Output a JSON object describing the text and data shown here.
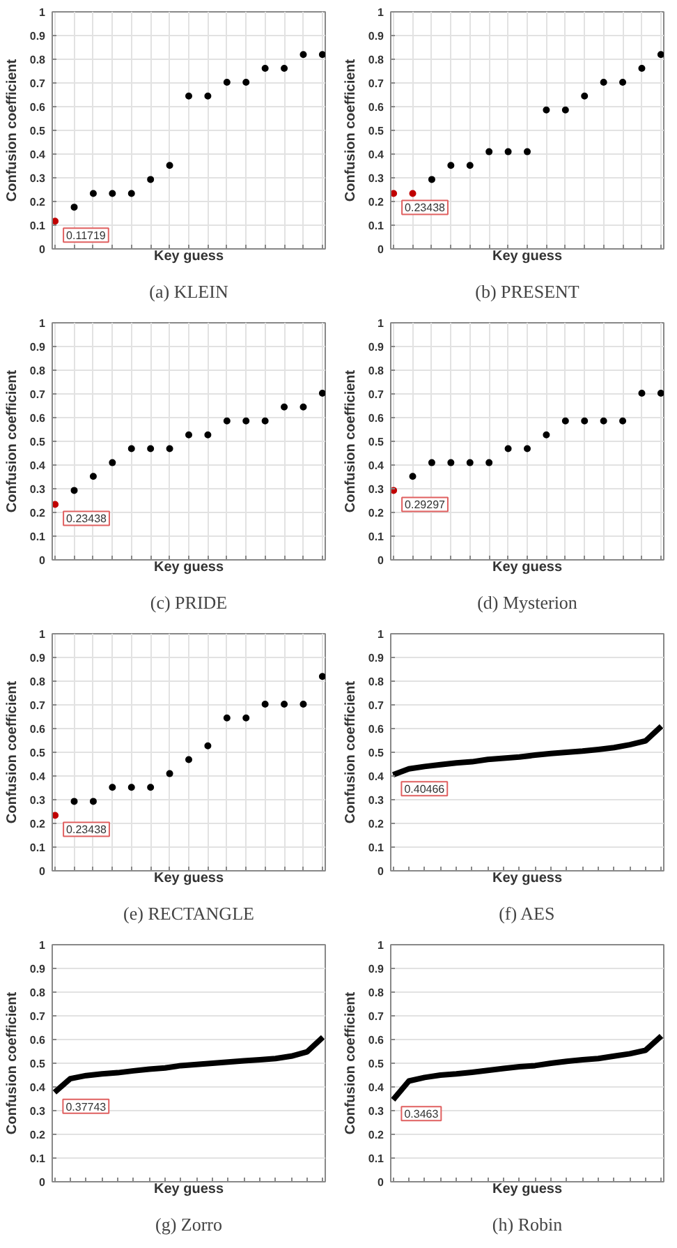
{
  "chart_data": [
    {
      "type": "scatter",
      "title": "(a) KLEIN",
      "xlabel": "Key guess",
      "ylabel": "Confusion coefficient",
      "marker": "circle",
      "grid": true,
      "ylim": [
        0,
        1
      ],
      "yticks": [
        0,
        0.1,
        0.2,
        0.3,
        0.4,
        0.5,
        0.6,
        0.7,
        0.8,
        0.9,
        1
      ],
      "categories": [
        null,
        null,
        null,
        null,
        null,
        null,
        null,
        null,
        null,
        null,
        null,
        null,
        null,
        null,
        null
      ],
      "series": [
        {
          "colors": [
            "#c00000",
            "#000000",
            "#000000",
            "#000000",
            "#000000",
            "#000000",
            "#000000",
            "#000000",
            "#000000",
            "#000000",
            "#000000",
            "#000000",
            "#000000",
            "#000000",
            "#000000"
          ],
          "values": [
            0.117,
            0.176,
            0.234,
            0.234,
            0.234,
            0.293,
            0.352,
            0.645,
            0.645,
            0.703,
            0.703,
            0.762,
            0.762,
            0.82,
            0.82
          ]
        }
      ],
      "annotations": [
        "0.11719"
      ]
    },
    {
      "type": "scatter",
      "title": "(b) PRESENT",
      "xlabel": "Key guess",
      "ylabel": "Confusion coefficient",
      "marker": "circle",
      "grid": true,
      "ylim": [
        0,
        1
      ],
      "yticks": [
        0,
        0.1,
        0.2,
        0.3,
        0.4,
        0.5,
        0.6,
        0.7,
        0.8,
        0.9,
        1
      ],
      "categories": [
        null,
        null,
        null,
        null,
        null,
        null,
        null,
        null,
        null,
        null,
        null,
        null,
        null,
        null,
        null
      ],
      "series": [
        {
          "colors": [
            "#c00000",
            "#c00000",
            "#000000",
            "#000000",
            "#000000",
            "#000000",
            "#000000",
            "#000000",
            "#000000",
            "#000000",
            "#000000",
            "#000000",
            "#000000",
            "#000000",
            "#000000"
          ],
          "values": [
            0.234,
            0.234,
            0.293,
            0.352,
            0.352,
            0.41,
            0.41,
            0.41,
            0.586,
            0.586,
            0.645,
            0.703,
            0.703,
            0.762,
            0.82
          ]
        }
      ],
      "annotations": [
        "0.23438"
      ]
    },
    {
      "type": "scatter",
      "title": "(c) PRIDE",
      "xlabel": "Key guess",
      "ylabel": "Confusion coefficient",
      "marker": "circle",
      "grid": true,
      "ylim": [
        0,
        1
      ],
      "yticks": [
        0,
        0.1,
        0.2,
        0.3,
        0.4,
        0.5,
        0.6,
        0.7,
        0.8,
        0.9,
        1
      ],
      "categories": [
        null,
        null,
        null,
        null,
        null,
        null,
        null,
        null,
        null,
        null,
        null,
        null,
        null,
        null,
        null
      ],
      "series": [
        {
          "colors": [
            "#c00000",
            "#000000",
            "#000000",
            "#000000",
            "#000000",
            "#000000",
            "#000000",
            "#000000",
            "#000000",
            "#000000",
            "#000000",
            "#000000",
            "#000000",
            "#000000",
            "#000000"
          ],
          "values": [
            0.234,
            0.293,
            0.352,
            0.41,
            0.469,
            0.469,
            0.469,
            0.527,
            0.527,
            0.586,
            0.586,
            0.586,
            0.645,
            0.645,
            0.703
          ]
        }
      ],
      "annotations": [
        "0.23438"
      ]
    },
    {
      "type": "scatter",
      "title": "(d) Mysterion",
      "xlabel": "Key guess",
      "ylabel": "Confusion coefficient",
      "marker": "circle",
      "grid": true,
      "ylim": [
        0,
        1
      ],
      "yticks": [
        0,
        0.1,
        0.2,
        0.3,
        0.4,
        0.5,
        0.6,
        0.7,
        0.8,
        0.9,
        1
      ],
      "categories": [
        null,
        null,
        null,
        null,
        null,
        null,
        null,
        null,
        null,
        null,
        null,
        null,
        null,
        null,
        null
      ],
      "series": [
        {
          "colors": [
            "#c00000",
            "#000000",
            "#000000",
            "#000000",
            "#000000",
            "#000000",
            "#000000",
            "#000000",
            "#000000",
            "#000000",
            "#000000",
            "#000000",
            "#000000",
            "#000000",
            "#000000"
          ],
          "values": [
            0.293,
            0.352,
            0.41,
            0.41,
            0.41,
            0.41,
            0.469,
            0.469,
            0.527,
            0.586,
            0.586,
            0.586,
            0.586,
            0.703,
            0.703
          ]
        }
      ],
      "annotations": [
        "0.29297"
      ]
    },
    {
      "type": "scatter",
      "title": "(e) RECTANGLE",
      "xlabel": "Key guess",
      "ylabel": "Confusion coefficient",
      "marker": "circle",
      "grid": true,
      "ylim": [
        0,
        1
      ],
      "yticks": [
        0,
        0.1,
        0.2,
        0.3,
        0.4,
        0.5,
        0.6,
        0.7,
        0.8,
        0.9,
        1
      ],
      "categories": [
        null,
        null,
        null,
        null,
        null,
        null,
        null,
        null,
        null,
        null,
        null,
        null,
        null,
        null,
        null
      ],
      "series": [
        {
          "colors": [
            "#c00000",
            "#000000",
            "#000000",
            "#000000",
            "#000000",
            "#000000",
            "#000000",
            "#000000",
            "#000000",
            "#000000",
            "#000000",
            "#000000",
            "#000000",
            "#000000",
            "#000000"
          ],
          "values": [
            0.234,
            0.293,
            0.293,
            0.352,
            0.352,
            0.352,
            0.41,
            0.469,
            0.527,
            0.645,
            0.645,
            0.703,
            0.703,
            0.703,
            0.82
          ]
        }
      ],
      "annotations": [
        "0.23438"
      ]
    },
    {
      "type": "line",
      "title": "(f) AES",
      "xlabel": "Key guess",
      "ylabel": "Confusion coefficient",
      "grid": "y",
      "ylim": [
        0,
        1
      ],
      "yticks": [
        0,
        0.1,
        0.2,
        0.3,
        0.4,
        0.5,
        0.6,
        0.7,
        0.8,
        0.9,
        1
      ],
      "categories": [
        null,
        null,
        null,
        null,
        null,
        null,
        null,
        null,
        null,
        null,
        null,
        null,
        null,
        null,
        null,
        null,
        null,
        null
      ],
      "series": [
        {
          "color": "#000000",
          "values": [
            0.405,
            0.43,
            0.44,
            0.448,
            0.455,
            0.46,
            0.47,
            0.475,
            0.48,
            0.488,
            0.495,
            0.5,
            0.505,
            0.512,
            0.52,
            0.532,
            0.548,
            0.61
          ]
        }
      ],
      "annotations": [
        "0.40466"
      ]
    },
    {
      "type": "line",
      "title": "(g) Zorro",
      "xlabel": "Key guess",
      "ylabel": "Confusion coefficient",
      "grid": "y",
      "ylim": [
        0,
        1
      ],
      "yticks": [
        0,
        0.1,
        0.2,
        0.3,
        0.4,
        0.5,
        0.6,
        0.7,
        0.8,
        0.9,
        1
      ],
      "categories": [
        null,
        null,
        null,
        null,
        null,
        null,
        null,
        null,
        null,
        null,
        null,
        null,
        null,
        null,
        null,
        null,
        null,
        null
      ],
      "series": [
        {
          "color": "#000000",
          "values": [
            0.377,
            0.435,
            0.448,
            0.455,
            0.46,
            0.468,
            0.475,
            0.48,
            0.49,
            0.495,
            0.5,
            0.505,
            0.51,
            0.515,
            0.52,
            0.53,
            0.548,
            0.61
          ]
        }
      ],
      "annotations": [
        "0.37743"
      ]
    },
    {
      "type": "line",
      "title": "(h) Robin",
      "xlabel": "Key guess",
      "ylabel": "Confusion coefficient",
      "grid": "y",
      "ylim": [
        0,
        1
      ],
      "yticks": [
        0,
        0.1,
        0.2,
        0.3,
        0.4,
        0.5,
        0.6,
        0.7,
        0.8,
        0.9,
        1
      ],
      "categories": [
        null,
        null,
        null,
        null,
        null,
        null,
        null,
        null,
        null,
        null,
        null,
        null,
        null,
        null,
        null,
        null,
        null,
        null
      ],
      "series": [
        {
          "color": "#000000",
          "values": [
            0.346,
            0.425,
            0.44,
            0.45,
            0.455,
            0.462,
            0.47,
            0.478,
            0.485,
            0.49,
            0.5,
            0.508,
            0.515,
            0.52,
            0.53,
            0.54,
            0.555,
            0.615
          ]
        }
      ],
      "annotations": [
        "0.3463"
      ]
    }
  ]
}
